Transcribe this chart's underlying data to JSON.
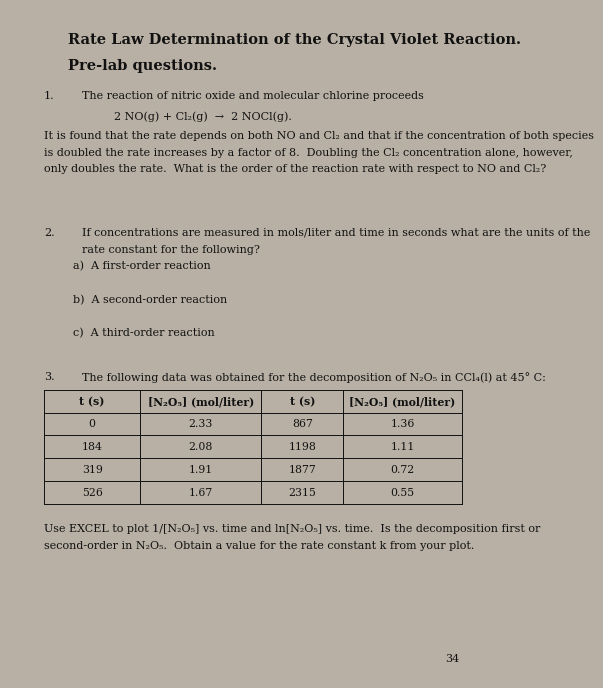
{
  "bg_color": "#b8b0a4",
  "paper_color": "#e8e2d8",
  "title_line1": "Rate Law Determination of the Crystal Violet Reaction.",
  "title_line2": "Pre-lab questions.",
  "q1_label": "1.",
  "q1_intro": "The reaction of nitric oxide and molecular chlorine proceeds",
  "q1_equation": "2 NO(g) + Cl₂(g)  →  2 NOCl(g).",
  "q1_body1": "It is found that the rate depends on both NO and Cl₂ and that if the concentration of both species",
  "q1_body2": "is doubled the rate increases by a factor of 8.  Doubling the Cl₂ concentration alone, however,",
  "q1_body3": "only doubles the rate.  What is the order of the reaction rate with respect to NO and Cl₂?",
  "q2_label": "2.",
  "q2_intro1": "If concentrations are measured in mols/liter and time in seconds what are the units of the",
  "q2_intro2": "rate constant for the following?",
  "q2a": "a)  A first-order reaction",
  "q2b": "b)  A second-order reaction",
  "q2c": "c)  A third-order reaction",
  "q3_label": "3.",
  "q3_intro": "The following data was obtained for the decomposition of N₂O₅ in CCl₄(l) at 45° C:",
  "table_headers": [
    "t (s)",
    "[N₂O₅] (mol/liter)",
    "t (s)",
    "[N₂O₅] (mol/liter)"
  ],
  "table_col1": [
    "0",
    "184",
    "319",
    "526"
  ],
  "table_col2": [
    "2.33",
    "2.08",
    "1.91",
    "1.67"
  ],
  "table_col3": [
    "867",
    "1198",
    "1877",
    "2315"
  ],
  "table_col4": [
    "1.36",
    "1.11",
    "0.72",
    "0.55"
  ],
  "q3_footer1": "Use EXCEL to plot 1/[N₂O₅] vs. time and ln[N₂O₅] vs. time.  Is the decomposition first or",
  "q3_footer2": "second-order in N₂O₅.  Obtain a value for the rate constant k from your plot.",
  "page_number": "34",
  "text_color": "#111111",
  "title_fontsize": 10.5,
  "body_fontsize": 8.0,
  "table_fontsize": 7.8
}
